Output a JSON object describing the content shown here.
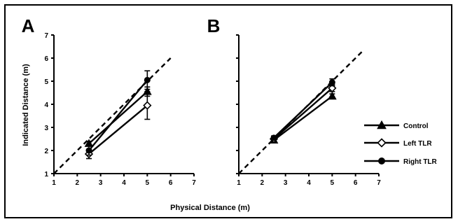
{
  "figure": {
    "xlabel": "Physical Distance (m)",
    "ylabel": "Indicated Distance (m)"
  },
  "legend": {
    "items": [
      {
        "label": "Control",
        "marker": "triangle-icon"
      },
      {
        "label": "Left TLR",
        "marker": "diamond-icon"
      },
      {
        "label": "Right TLR",
        "marker": "circle-icon"
      }
    ]
  },
  "colors": {
    "ink": "#000000",
    "background": "#ffffff"
  },
  "chart_data": [
    {
      "type": "line",
      "panel_label": "A",
      "xlabel": "Physical Distance (m)",
      "ylabel": "Indicated Distance (m)",
      "xlim": [
        1,
        7
      ],
      "ylim": [
        1,
        7
      ],
      "xticks": [
        "1",
        "2",
        "3",
        "4",
        "5",
        "6",
        "7"
      ],
      "yticks": [
        "1",
        "2",
        "3",
        "4",
        "5",
        "6",
        "7"
      ],
      "reference_line": {
        "style": "dashed",
        "x": [
          1,
          6
        ],
        "y": [
          1,
          6
        ]
      },
      "series": [
        {
          "name": "Control",
          "marker": "triangle",
          "x": [
            2.5,
            5
          ],
          "y": [
            2.3,
            4.55
          ],
          "err": [
            0.1,
            0.2
          ]
        },
        {
          "name": "Left TLR",
          "marker": "diamond",
          "x": [
            2.5,
            5
          ],
          "y": [
            1.85,
            3.95
          ],
          "err": [
            0.2,
            0.6
          ]
        },
        {
          "name": "Right TLR",
          "marker": "circle",
          "x": [
            2.5,
            5
          ],
          "y": [
            2.0,
            5.05
          ],
          "err": [
            0.2,
            0.4
          ]
        }
      ]
    },
    {
      "type": "line",
      "panel_label": "B",
      "xlim": [
        1,
        7
      ],
      "ylim": [
        1,
        7
      ],
      "xticks": [
        "1",
        "2",
        "3",
        "4",
        "5",
        "6",
        "7"
      ],
      "reference_line": {
        "style": "dashed",
        "x": [
          1,
          6.3
        ],
        "y": [
          1,
          6.3
        ]
      },
      "series": [
        {
          "name": "Control",
          "marker": "triangle",
          "x": [
            2.5,
            5
          ],
          "y": [
            2.45,
            4.35
          ],
          "err": [
            0.08,
            0.1
          ]
        },
        {
          "name": "Left TLR",
          "marker": "diamond",
          "x": [
            2.5,
            5
          ],
          "y": [
            2.5,
            4.7
          ],
          "err": [
            0.08,
            0.15
          ]
        },
        {
          "name": "Right TLR",
          "marker": "circle",
          "x": [
            2.5,
            5
          ],
          "y": [
            2.55,
            4.95
          ],
          "err": [
            0.08,
            0.15
          ]
        }
      ]
    }
  ]
}
